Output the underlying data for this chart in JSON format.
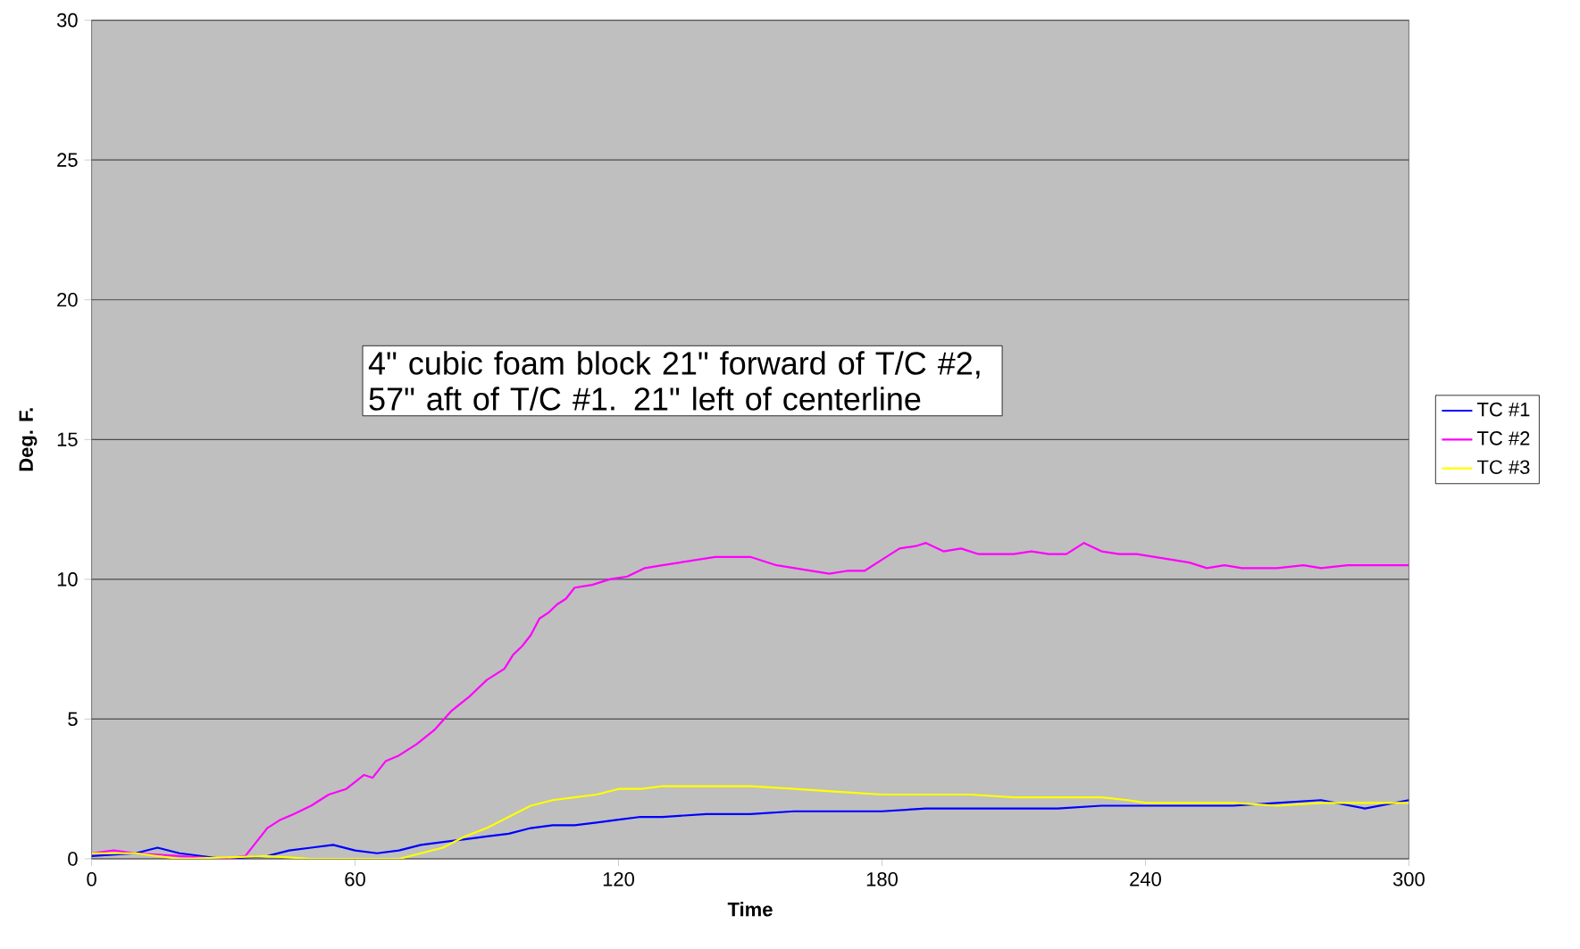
{
  "chart_data": {
    "type": "line",
    "xlabel": "Time",
    "ylabel": "Deg. F.",
    "annotations": [
      "4\" cubic foam block 21\" forward of T/C #2, 57\" aft of T/C #1. 21\" left of centerline"
    ],
    "xlim": [
      0,
      300
    ],
    "xticks": [
      0,
      60,
      120,
      180,
      240,
      300
    ],
    "ylim": [
      0,
      30
    ],
    "yticks": [
      0,
      5,
      10,
      15,
      20,
      25,
      30
    ],
    "grid": "y",
    "legend": "right",
    "marker": "none",
    "line_style": "solid",
    "series": [
      {
        "name": "TC #1",
        "color": "#0000ff",
        "x": [
          0,
          10,
          15,
          20,
          30,
          40,
          45,
          50,
          55,
          60,
          65,
          70,
          75,
          80,
          85,
          90,
          95,
          100,
          105,
          110,
          115,
          120,
          125,
          130,
          140,
          150,
          160,
          170,
          180,
          190,
          200,
          210,
          220,
          230,
          240,
          250,
          260,
          270,
          280,
          290,
          300
        ],
        "values": [
          0.1,
          0.2,
          0.4,
          0.2,
          0.0,
          0.1,
          0.3,
          0.4,
          0.5,
          0.3,
          0.2,
          0.3,
          0.5,
          0.6,
          0.7,
          0.8,
          0.9,
          1.1,
          1.2,
          1.2,
          1.3,
          1.4,
          1.5,
          1.5,
          1.6,
          1.6,
          1.7,
          1.7,
          1.7,
          1.8,
          1.8,
          1.8,
          1.8,
          1.9,
          1.9,
          1.9,
          1.9,
          2.0,
          2.1,
          1.8,
          2.1
        ]
      },
      {
        "name": "TC #2",
        "color": "#ff00ff",
        "x": [
          0,
          5,
          10,
          20,
          30,
          35,
          37,
          40,
          43,
          46,
          50,
          54,
          58,
          62,
          64,
          67,
          70,
          74,
          78,
          82,
          86,
          88,
          90,
          94,
          96,
          98,
          100,
          102,
          104,
          106,
          108,
          110,
          114,
          118,
          122,
          126,
          130,
          134,
          138,
          142,
          146,
          150,
          156,
          160,
          164,
          168,
          172,
          176,
          180,
          184,
          188,
          190,
          194,
          198,
          202,
          206,
          210,
          214,
          218,
          222,
          226,
          230,
          234,
          238,
          242,
          246,
          250,
          254,
          258,
          262,
          266,
          270,
          276,
          280,
          286,
          292,
          296,
          300
        ],
        "values": [
          0.2,
          0.3,
          0.2,
          0.1,
          0.0,
          0.1,
          0.5,
          1.1,
          1.4,
          1.6,
          1.9,
          2.3,
          2.5,
          3.0,
          2.9,
          3.5,
          3.7,
          4.1,
          4.6,
          5.3,
          5.8,
          6.1,
          6.4,
          6.8,
          7.3,
          7.6,
          8.0,
          8.6,
          8.8,
          9.1,
          9.3,
          9.7,
          9.8,
          10.0,
          10.1,
          10.4,
          10.5,
          10.6,
          10.7,
          10.8,
          10.8,
          10.8,
          10.5,
          10.4,
          10.3,
          10.2,
          10.3,
          10.3,
          10.7,
          11.1,
          11.2,
          11.3,
          11.0,
          11.1,
          10.9,
          10.9,
          10.9,
          11.0,
          10.9,
          10.9,
          11.3,
          11.0,
          10.9,
          10.9,
          10.8,
          10.7,
          10.6,
          10.4,
          10.5,
          10.4,
          10.4,
          10.4,
          10.5,
          10.4,
          10.5,
          10.5,
          10.5,
          10.5
        ]
      },
      {
        "name": "TC #3",
        "color": "#ffff00",
        "x": [
          0,
          10,
          20,
          40,
          50,
          70,
          75,
          80,
          85,
          90,
          95,
          100,
          105,
          110,
          115,
          120,
          125,
          130,
          140,
          150,
          160,
          170,
          180,
          190,
          200,
          210,
          220,
          230,
          236,
          240,
          250,
          260,
          270,
          280,
          290,
          300
        ],
        "values": [
          0.2,
          0.2,
          0.0,
          0.1,
          0.0,
          0.0,
          0.2,
          0.4,
          0.8,
          1.1,
          1.5,
          1.9,
          2.1,
          2.2,
          2.3,
          2.5,
          2.5,
          2.6,
          2.6,
          2.6,
          2.5,
          2.4,
          2.3,
          2.3,
          2.3,
          2.2,
          2.2,
          2.2,
          2.1,
          2.0,
          2.0,
          2.0,
          1.9,
          2.0,
          2.0,
          2.0
        ]
      }
    ]
  }
}
